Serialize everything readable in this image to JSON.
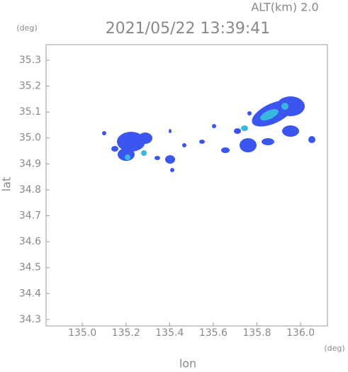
{
  "chart_data": {
    "type": "radar-map",
    "title": "2021/05/22 13:39:41",
    "subtitle": "ALT(km) 2.0",
    "y_unit": "(deg)",
    "x_unit": "(deg)",
    "x_label": "lon",
    "y_label": "lat",
    "xlim": [
      134.834,
      136.123
    ],
    "ylim": [
      34.275,
      35.36
    ],
    "xticks": [
      {
        "value": 135,
        "label": "135.0"
      },
      135.2,
      135.4,
      135.6,
      135.8,
      {
        "value": 136,
        "label": "136.0"
      }
    ],
    "yticks": [
      34.3,
      34.4,
      34.5,
      34.6,
      34.7,
      34.8,
      34.9,
      {
        "value": 35,
        "label": "35.0"
      },
      35.1,
      35.2,
      35.3
    ]
  }
}
